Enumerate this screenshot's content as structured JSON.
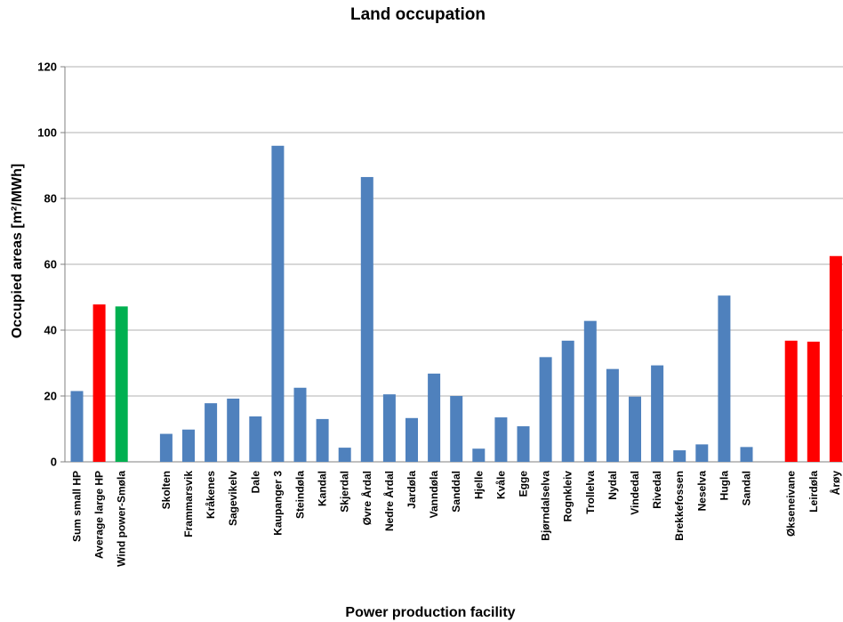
{
  "chart_data": {
    "type": "bar",
    "title": "Land occupation",
    "xlabel": "Power production facility",
    "ylabel": "Occupied areas [m²/MWh]",
    "ylim": [
      0,
      120
    ],
    "yticks": [
      0,
      20,
      40,
      60,
      80,
      100,
      120
    ],
    "grid": true,
    "legend": "none",
    "colors": {
      "blue": "#4f81bd",
      "red": "#ff0000",
      "green": "#00b050"
    },
    "bars": [
      {
        "label": "Sum small HP",
        "value": 21.5,
        "color": "blue",
        "slot": 0
      },
      {
        "label": "Average large HP",
        "value": 47.8,
        "color": "red",
        "slot": 1
      },
      {
        "label": "Wind power-Smøla",
        "value": 47.2,
        "color": "green",
        "slot": 2
      },
      {
        "label": "Skolten",
        "value": 8.5,
        "color": "blue",
        "slot": 4
      },
      {
        "label": "Frammarsvik",
        "value": 9.8,
        "color": "blue",
        "slot": 5
      },
      {
        "label": "Kråkenes",
        "value": 17.8,
        "color": "blue",
        "slot": 6
      },
      {
        "label": "Sagevikelv",
        "value": 19.2,
        "color": "blue",
        "slot": 7
      },
      {
        "label": "Dale",
        "value": 13.8,
        "color": "blue",
        "slot": 8
      },
      {
        "label": "Kaupanger 3",
        "value": 96.0,
        "color": "blue",
        "slot": 9
      },
      {
        "label": "Steindøla",
        "value": 22.5,
        "color": "blue",
        "slot": 10
      },
      {
        "label": "Kandal",
        "value": 13.0,
        "color": "blue",
        "slot": 11
      },
      {
        "label": "Skjerdal",
        "value": 4.3,
        "color": "blue",
        "slot": 12
      },
      {
        "label": "Øvre Årdal",
        "value": 86.5,
        "color": "blue",
        "slot": 13
      },
      {
        "label": "Nedre Årdal",
        "value": 20.5,
        "color": "blue",
        "slot": 14
      },
      {
        "label": "Jardøla",
        "value": 13.3,
        "color": "blue",
        "slot": 15
      },
      {
        "label": "Vanndøla",
        "value": 26.8,
        "color": "blue",
        "slot": 16
      },
      {
        "label": "Sanddal",
        "value": 20.0,
        "color": "blue",
        "slot": 17
      },
      {
        "label": "Hjelle",
        "value": 4.0,
        "color": "blue",
        "slot": 18
      },
      {
        "label": "Kvåle",
        "value": 13.5,
        "color": "blue",
        "slot": 19
      },
      {
        "label": "Egge",
        "value": 10.8,
        "color": "blue",
        "slot": 20
      },
      {
        "label": "Bjørndalselva",
        "value": 31.8,
        "color": "blue",
        "slot": 21
      },
      {
        "label": "Rognkleiv",
        "value": 36.8,
        "color": "blue",
        "slot": 22
      },
      {
        "label": "Trollelva",
        "value": 42.8,
        "color": "blue",
        "slot": 23
      },
      {
        "label": "Nydal",
        "value": 28.2,
        "color": "blue",
        "slot": 24
      },
      {
        "label": "Vindedal",
        "value": 19.8,
        "color": "blue",
        "slot": 25
      },
      {
        "label": "Rivedal",
        "value": 29.3,
        "color": "blue",
        "slot": 26
      },
      {
        "label": "Brekkefossen",
        "value": 3.5,
        "color": "blue",
        "slot": 27
      },
      {
        "label": "Neselva",
        "value": 5.3,
        "color": "blue",
        "slot": 28
      },
      {
        "label": "Hugla",
        "value": 50.5,
        "color": "blue",
        "slot": 29
      },
      {
        "label": "Sandal",
        "value": 4.5,
        "color": "blue",
        "slot": 30
      },
      {
        "label": "Økseneivane",
        "value": 36.8,
        "color": "red",
        "slot": 32
      },
      {
        "label": "Leirdøla",
        "value": 36.5,
        "color": "red",
        "slot": 33
      },
      {
        "label": "Årøy",
        "value": 62.5,
        "color": "red",
        "slot": 34
      }
    ]
  }
}
